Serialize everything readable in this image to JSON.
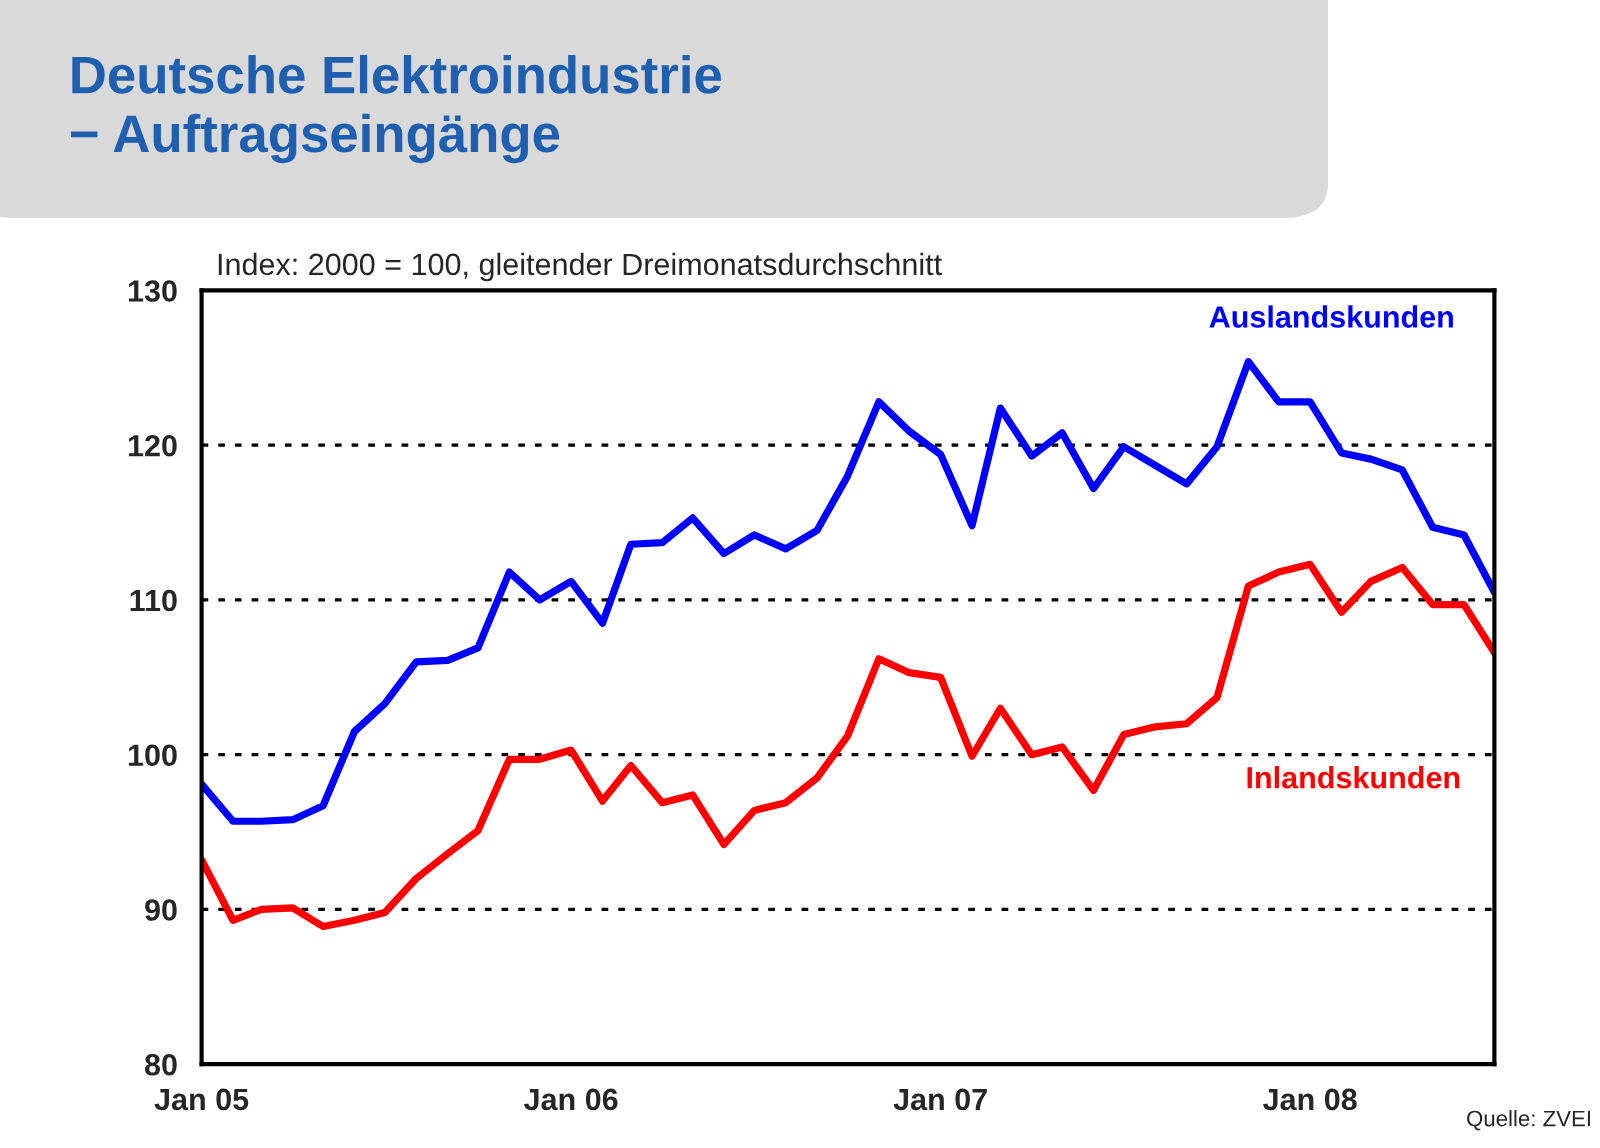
{
  "chart_data": {
    "type": "line",
    "title": "Deutsche Elektroindustrie\n− Auftragseingänge",
    "subtitle": "Index: 2000 = 100, gleitender Dreimonatsdurchschnitt",
    "annotations": [
      "Quelle: ZVEI"
    ],
    "x": [
      "2005-01",
      "2005-02",
      "2005-03",
      "2005-04",
      "2005-05",
      "2005-06",
      "2005-07",
      "2005-08",
      "2005-09",
      "2005-10",
      "2005-11",
      "2005-12",
      "2006-01",
      "2006-02",
      "2006-03",
      "2006-04",
      "2006-05",
      "2006-06",
      "2006-07",
      "2006-08",
      "2006-09",
      "2006-10",
      "2006-11",
      "2006-12",
      "2007-01",
      "2007-02",
      "2007-03",
      "2007-04",
      "2007-05",
      "2007-06",
      "2007-07",
      "2007-08",
      "2007-09",
      "2007-10",
      "2007-11",
      "2007-12",
      "2008-01",
      "2008-02",
      "2008-03",
      "2008-04",
      "2008-05",
      "2008-06",
      "2008-07"
    ],
    "series": [
      {
        "name": "Auslandskunden",
        "color": "#0000ff",
        "values": [
          98.1,
          95.7,
          95.7,
          95.8,
          96.7,
          101.5,
          103.3,
          106.0,
          106.1,
          106.9,
          111.8,
          110.0,
          111.2,
          108.5,
          113.6,
          113.7,
          115.3,
          113.0,
          114.2,
          113.3,
          114.5,
          118.0,
          122.8,
          120.9,
          119.4,
          114.8,
          122.4,
          119.3,
          120.8,
          117.2,
          119.9,
          118.7,
          117.5,
          119.9,
          125.4,
          122.8,
          122.8,
          119.5,
          119.1,
          118.4,
          114.7,
          114.2,
          110.5
        ]
      },
      {
        "name": "Inlandskunden",
        "color": "#ff0000",
        "values": [
          93.2,
          89.3,
          90.0,
          90.1,
          88.9,
          89.3,
          89.8,
          92.0,
          93.6,
          95.1,
          99.7,
          99.7,
          100.3,
          97.0,
          99.3,
          96.9,
          97.4,
          94.2,
          96.4,
          96.9,
          98.5,
          101.2,
          106.2,
          105.3,
          105.0,
          99.9,
          103.0,
          100.0,
          100.5,
          97.7,
          101.3,
          101.8,
          102.0,
          103.7,
          110.9,
          111.8,
          112.3,
          109.2,
          111.2,
          112.1,
          109.7,
          109.7,
          106.6
        ]
      }
    ],
    "xlim": [
      "2005-01",
      "2008-07"
    ],
    "xticks": [
      {
        "value": "2005-01",
        "label": "Jan 05"
      },
      {
        "value": "2006-01",
        "label": "Jan 06"
      },
      {
        "value": "2007-01",
        "label": "Jan 07"
      },
      {
        "value": "2008-01",
        "label": "Jan 08"
      },
      {
        "value": "2008-07",
        "label": null
      }
    ],
    "ylim": [
      80,
      130
    ],
    "yticks": [
      80,
      90,
      100,
      110,
      120,
      130
    ],
    "grid": "y",
    "legend": false,
    "marker": "none",
    "line_style": "solid"
  }
}
